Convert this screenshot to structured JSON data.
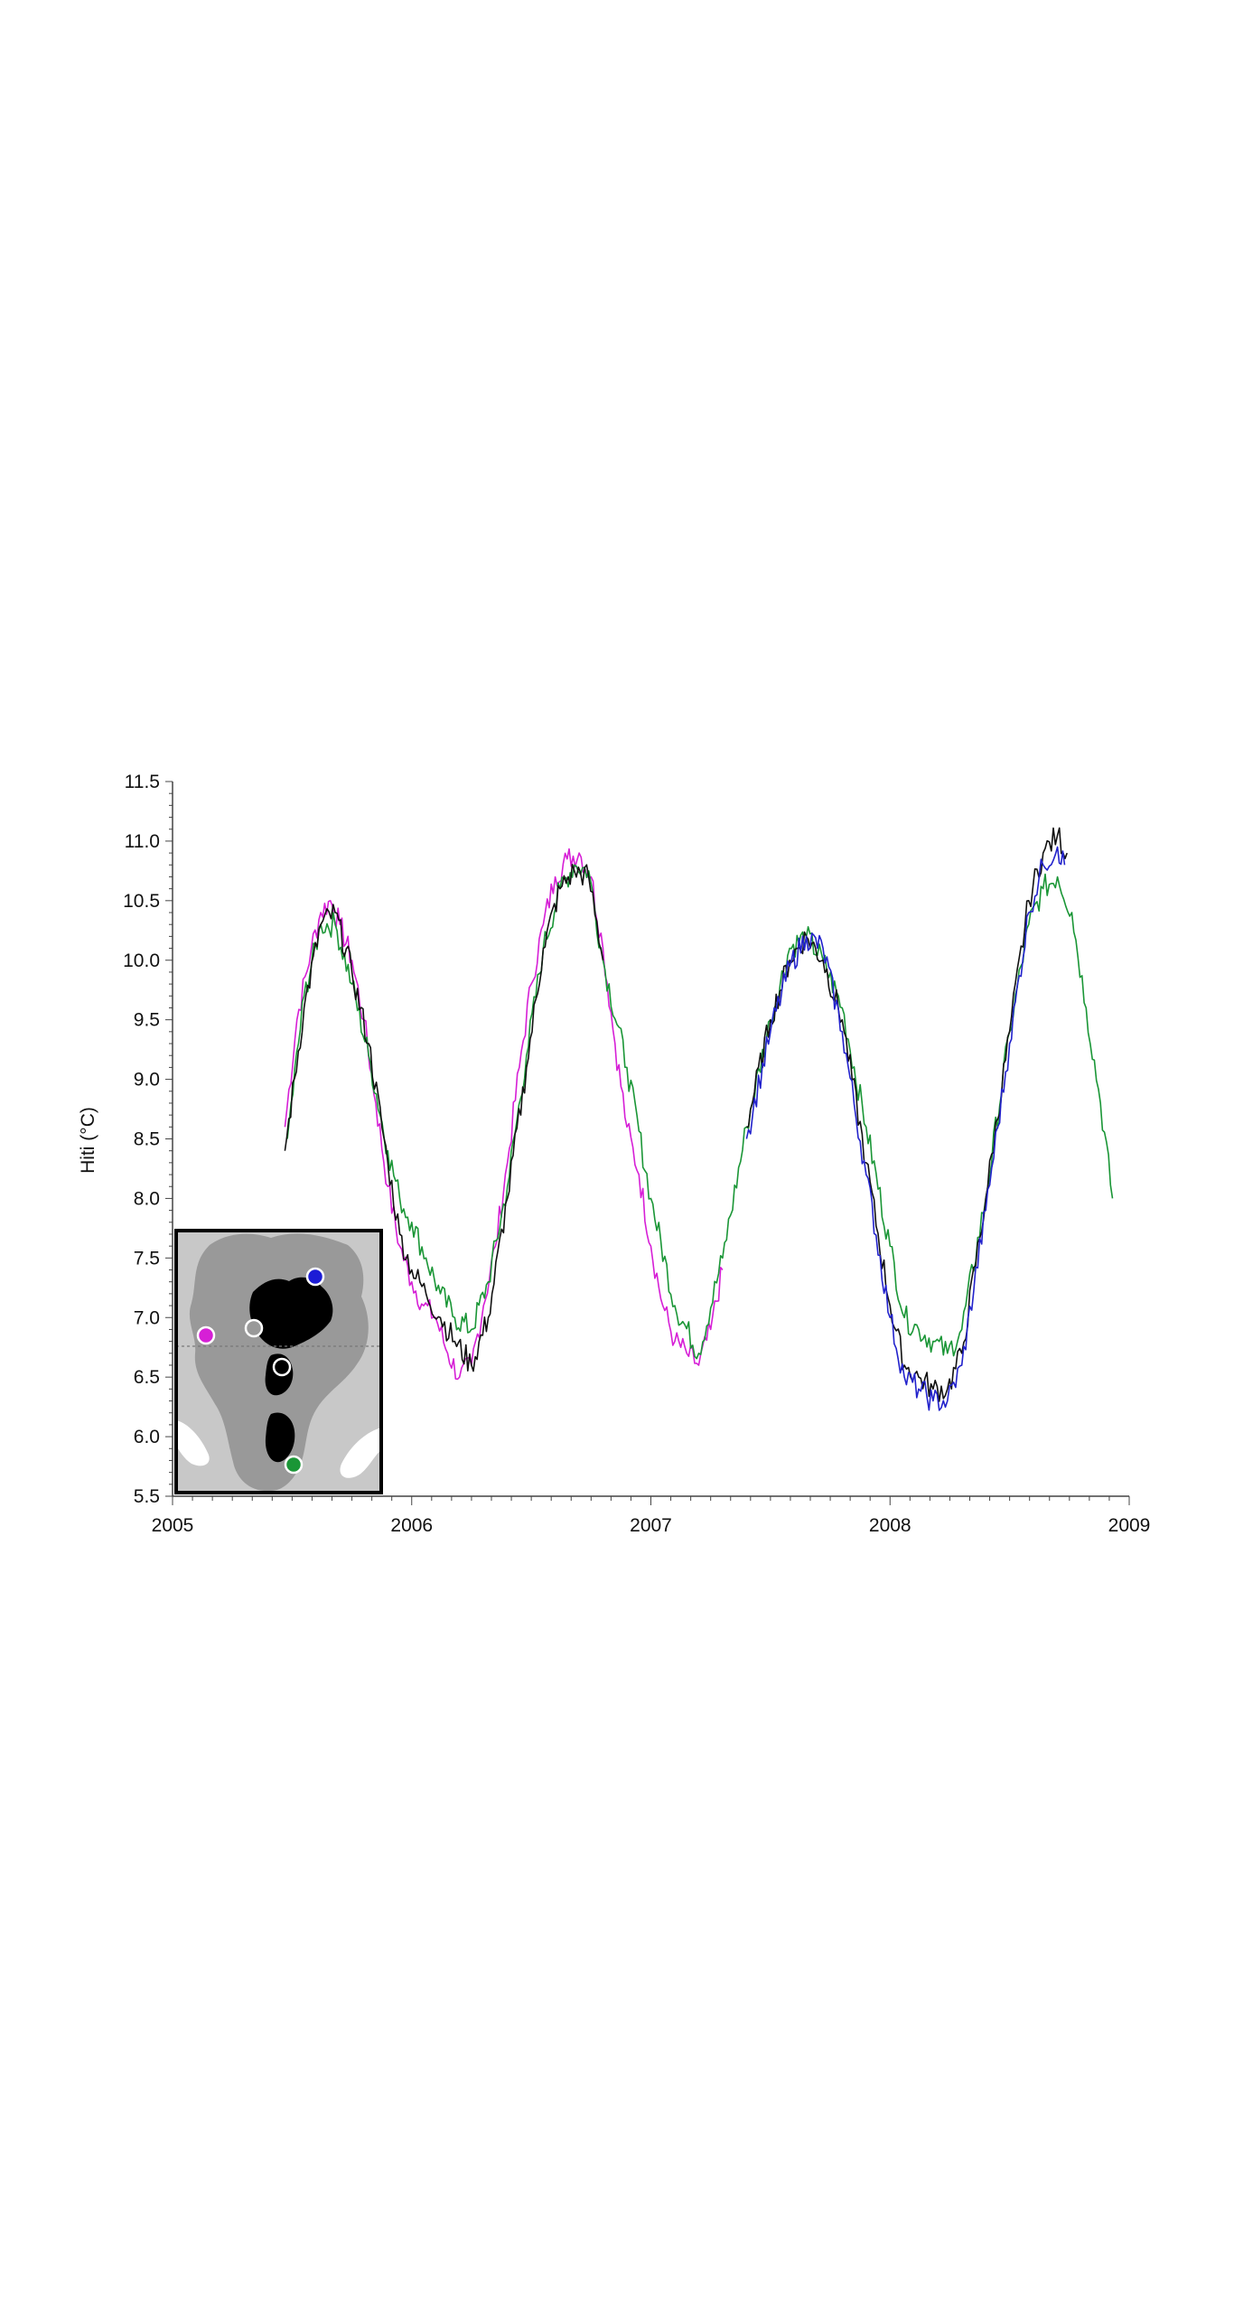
{
  "chart_data": {
    "type": "line",
    "title": "",
    "xlabel": "",
    "ylabel": "Hiti (°C)",
    "xlim": [
      2005,
      2009
    ],
    "ylim": [
      5.5,
      11.5
    ],
    "x_ticks": [
      "2005",
      "2006",
      "2007",
      "2008",
      "2009"
    ],
    "y_ticks": [
      "5.5",
      "6.0",
      "6.5",
      "7.0",
      "7.5",
      "8.0",
      "8.5",
      "9.0",
      "9.5",
      "10.0",
      "10.5",
      "11.0",
      "11.5"
    ],
    "grid": false,
    "legend": "none",
    "series": [
      {
        "color": "#d61fd6",
        "x": [
          2005.47,
          2005.52,
          2005.58,
          2005.62,
          2005.66,
          2005.7,
          2005.75,
          2005.8,
          2005.85,
          2005.9,
          2005.95,
          2006.0,
          2006.05,
          2006.1,
          2006.15,
          2006.2,
          2006.25,
          2006.3,
          2006.35,
          2006.4,
          2006.45,
          2006.5,
          2006.55,
          2006.6,
          2006.65,
          2006.7,
          2006.75,
          2006.8,
          2006.85,
          2006.9,
          2006.95,
          2007.0,
          2007.05,
          2007.1,
          2007.15,
          2007.2,
          2007.25,
          2007.3
        ],
        "y": [
          8.6,
          9.5,
          10.1,
          10.4,
          10.5,
          10.3,
          10.0,
          9.5,
          8.8,
          8.1,
          7.6,
          7.3,
          7.1,
          7.0,
          6.7,
          6.5,
          6.6,
          7.1,
          7.6,
          8.3,
          9.1,
          9.8,
          10.3,
          10.7,
          10.85,
          10.9,
          10.7,
          10.1,
          9.3,
          8.6,
          8.2,
          7.6,
          7.1,
          6.8,
          6.7,
          6.6,
          6.9,
          7.4
        ]
      },
      {
        "color": "#1a9636",
        "x": [
          2005.48,
          2005.55,
          2005.62,
          2005.68,
          2005.75,
          2005.82,
          2005.9,
          2005.95,
          2006.0,
          2006.06,
          2006.12,
          2006.18,
          2006.25,
          2006.32,
          2006.4,
          2006.48,
          2006.55,
          2006.62,
          2006.68,
          2006.74,
          2006.8,
          2006.9,
          2007.0,
          2007.1,
          2007.2,
          2007.3,
          2007.4,
          2007.5,
          2007.58,
          2007.65,
          2007.72,
          2007.8,
          2007.9,
          2008.0,
          2008.06,
          2008.12,
          2008.18,
          2008.24,
          2008.3,
          2008.4,
          2008.5,
          2008.58,
          2008.64,
          2008.7,
          2008.76,
          2008.82,
          2008.88,
          2008.93
        ],
        "y": [
          8.5,
          9.7,
          10.3,
          10.3,
          9.8,
          9.2,
          8.4,
          8.0,
          7.8,
          7.5,
          7.2,
          7.0,
          6.9,
          7.3,
          8.1,
          9.2,
          10.1,
          10.6,
          10.8,
          10.75,
          10.0,
          9.1,
          8.0,
          7.1,
          6.7,
          7.5,
          8.6,
          9.5,
          10.1,
          10.2,
          10.0,
          9.6,
          8.6,
          7.6,
          7.0,
          6.9,
          6.8,
          6.7,
          6.9,
          8.0,
          9.4,
          10.3,
          10.6,
          10.7,
          10.4,
          9.6,
          8.8,
          8.0
        ]
      },
      {
        "color": "#111111",
        "x": [
          2005.47,
          2005.55,
          2005.62,
          2005.68,
          2005.75,
          2005.82,
          2005.9,
          2005.95,
          2006.0,
          2006.06,
          2006.12,
          2006.18,
          2006.25,
          2006.32,
          2006.4,
          2006.48,
          2006.55,
          2006.62,
          2006.68,
          2006.74,
          2006.8
        ],
        "y": [
          8.4,
          9.6,
          10.3,
          10.4,
          9.9,
          9.3,
          8.3,
          7.7,
          7.4,
          7.2,
          7.0,
          6.8,
          6.6,
          7.0,
          8.0,
          9.1,
          10.1,
          10.6,
          10.75,
          10.7,
          10.0
        ]
      },
      {
        "color": "#111111",
        "x": [
          2007.4,
          2007.5,
          2007.58,
          2007.65,
          2007.72,
          2007.8,
          2007.9,
          2008.0,
          2008.06,
          2008.12,
          2008.18,
          2008.24,
          2008.3,
          2008.4,
          2008.5,
          2008.58,
          2008.64,
          2008.7,
          2008.74
        ],
        "y": [
          8.6,
          9.5,
          10.0,
          10.2,
          10.0,
          9.5,
          8.3,
          7.1,
          6.6,
          6.5,
          6.4,
          6.4,
          6.7,
          8.0,
          9.4,
          10.5,
          10.9,
          11.05,
          10.9
        ]
      },
      {
        "color": "#2222cc",
        "x": [
          2007.4,
          2007.5,
          2007.58,
          2007.65,
          2007.72,
          2007.8,
          2007.9,
          2008.0,
          2008.06,
          2008.12,
          2008.18,
          2008.24,
          2008.3,
          2008.4,
          2008.5,
          2008.58,
          2008.64,
          2008.7,
          2008.73
        ],
        "y": [
          8.5,
          9.4,
          9.95,
          10.2,
          10.1,
          9.4,
          8.2,
          7.0,
          6.5,
          6.4,
          6.3,
          6.3,
          6.6,
          7.9,
          9.3,
          10.4,
          10.8,
          10.95,
          10.8
        ]
      }
    ]
  },
  "inset_map": {
    "land_color": "#000000",
    "shelf_color": "#999999",
    "ocean_color": "#c8c8c8",
    "stations": [
      {
        "color": "#1c1cd6"
      },
      {
        "color": "#d61fd6"
      },
      {
        "color": "#999999"
      },
      {
        "color": "#000000"
      },
      {
        "color": "#1a9636"
      }
    ]
  }
}
